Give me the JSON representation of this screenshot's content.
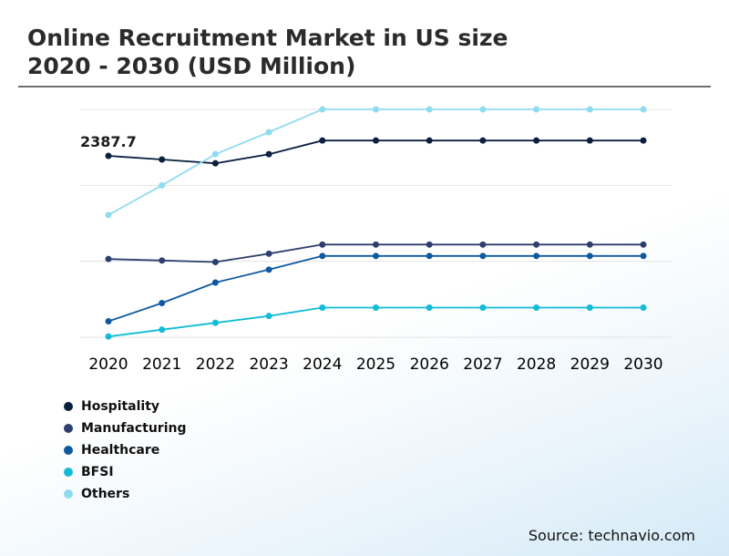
{
  "title_line1": "Online Recruitment Market in US size",
  "title_line2": "2020 - 2030 (USD Million)",
  "source": "Source: technavio.com",
  "annotation": "2387.7",
  "colors": {
    "Hospitality": "#0b1f3f",
    "Manufacturing": "#2e3f6e",
    "Healthcare": "#0f59a0",
    "BFSI": "#12bcd6",
    "Others": "#8fdcef",
    "grid": "#e3e3e3"
  },
  "chart_data": {
    "type": "line",
    "title": "Online Recruitment Market in US size 2020 - 2030 (USD Million)",
    "x": [
      "2020",
      "2021",
      "2022",
      "2023",
      "2024",
      "2025",
      "2026",
      "2027",
      "2028",
      "2029",
      "2030"
    ],
    "ylim": [
      0,
      3000
    ],
    "y_axis_labels_shown": false,
    "grid": true,
    "legend_position": "bottom-left",
    "annotations": [
      {
        "x": "2020",
        "series": "Hospitality",
        "text": "2387.7"
      }
    ],
    "series": [
      {
        "name": "Hospitality",
        "values": [
          2387.7,
          2340,
          2290,
          2410,
          2590,
          2590,
          2590,
          2590,
          2590,
          2590,
          2590
        ]
      },
      {
        "name": "Manufacturing",
        "values": [
          1030,
          1010,
          990,
          1100,
          1220,
          1220,
          1220,
          1220,
          1220,
          1220,
          1220
        ]
      },
      {
        "name": "Healthcare",
        "values": [
          210,
          450,
          720,
          890,
          1070,
          1070,
          1070,
          1070,
          1070,
          1070,
          1070
        ]
      },
      {
        "name": "BFSI",
        "values": [
          10,
          100,
          190,
          280,
          390,
          390,
          390,
          390,
          390,
          390,
          390
        ]
      },
      {
        "name": "Others",
        "values": [
          1610,
          2000,
          2410,
          2700,
          3000,
          3000,
          3000,
          3000,
          3000,
          3000,
          3000
        ]
      }
    ]
  }
}
